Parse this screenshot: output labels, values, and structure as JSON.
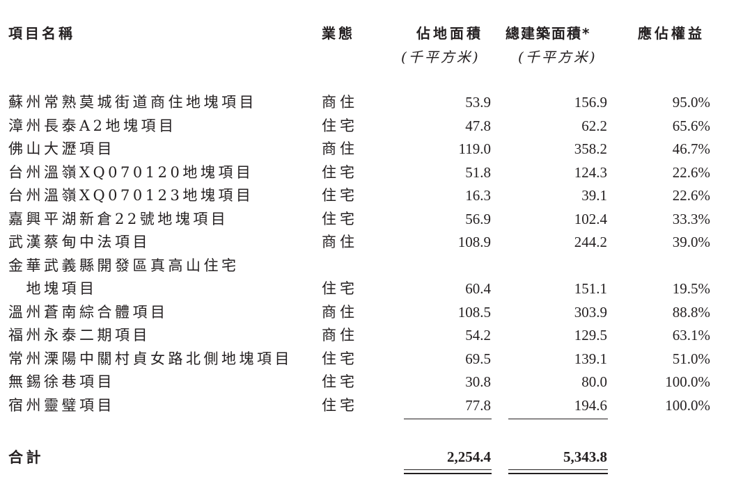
{
  "headers": {
    "project_name": "項目名稱",
    "business_type": "業態",
    "site_area": "佔地面積",
    "gfa": "總建築面積*",
    "equity": "應佔權益",
    "site_area_unit": "(千平方米)",
    "gfa_unit": "(千平方米)"
  },
  "rows": [
    {
      "name": "蘇州常熟莫城街道商住地塊項目",
      "type": "商住",
      "site_area": "53.9",
      "gfa": "156.9",
      "equity": "95.0%"
    },
    {
      "name": "漳州長泰A2地塊項目",
      "type": "住宅",
      "site_area": "47.8",
      "gfa": "62.2",
      "equity": "65.6%"
    },
    {
      "name": "佛山大瀝項目",
      "type": "商住",
      "site_area": "119.0",
      "gfa": "358.2",
      "equity": "46.7%"
    },
    {
      "name": "台州溫嶺XQ070120地塊項目",
      "type": "住宅",
      "site_area": "51.8",
      "gfa": "124.3",
      "equity": "22.6%"
    },
    {
      "name": "台州溫嶺XQ070123地塊項目",
      "type": "住宅",
      "site_area": "16.3",
      "gfa": "39.1",
      "equity": "22.6%"
    },
    {
      "name": "嘉興平湖新倉22號地塊項目",
      "type": "住宅",
      "site_area": "56.9",
      "gfa": "102.4",
      "equity": "33.3%"
    },
    {
      "name": "武漢蔡甸中法項目",
      "type": "商住",
      "site_area": "108.9",
      "gfa": "244.2",
      "equity": "39.0%"
    },
    {
      "name": "金華武義縣開發區真高山住宅"
    },
    {
      "name": "　地塊項目",
      "type": "住宅",
      "site_area": "60.4",
      "gfa": "151.1",
      "equity": "19.5%"
    },
    {
      "name": "溫州蒼南綜合體項目",
      "type": "商住",
      "site_area": "108.5",
      "gfa": "303.9",
      "equity": "88.8%"
    },
    {
      "name": "福州永泰二期項目",
      "type": "商住",
      "site_area": "54.2",
      "gfa": "129.5",
      "equity": "63.1%"
    },
    {
      "name": "常州溧陽中關村貞女路北側地塊項目",
      "type": "住宅",
      "site_area": "69.5",
      "gfa": "139.1",
      "equity": "51.0%"
    },
    {
      "name": "無錫徐巷項目",
      "type": "住宅",
      "site_area": "30.8",
      "gfa": "80.0",
      "equity": "100.0%"
    },
    {
      "name": "宿州靈璧項目",
      "type": "住宅",
      "site_area": "77.8",
      "gfa": "194.6",
      "equity": "100.0%"
    }
  ],
  "total": {
    "label": "合計",
    "site_area": "2,254.4",
    "gfa": "5,343.8"
  }
}
